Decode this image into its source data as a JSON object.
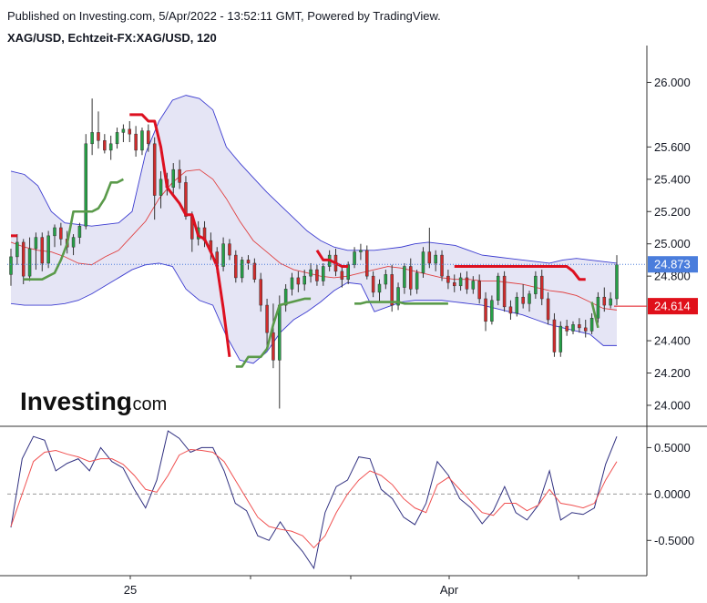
{
  "header": {
    "published": "Published on Investing.com, 5/Apr/2022 - 13:52:11 GMT, Powered by TradingView.",
    "symbol": "XAG/USD, Echtzeit-FX:XAG/USD, 120"
  },
  "logo": {
    "main": "Investing",
    "suffix": ".com"
  },
  "colors": {
    "up": "#26a047",
    "down": "#d02c2c",
    "bb_fill": "#dcdcf2",
    "bb_line": "#3c3cd0",
    "ma": "#e04040",
    "st_up": "#5a9a4a",
    "st_down": "#dd1020",
    "osc": "#303080",
    "osc_signal": "#f05050",
    "last_price": "#4a7ddc",
    "ma_label": "#e0101a"
  },
  "price_labels": {
    "last": "24.873",
    "ma": "24.614"
  },
  "chart_data": [
    {
      "type": "candlestick",
      "title": "XAG/USD, Echtzeit-FX:XAG/USD, 120",
      "ylim": [
        23.87,
        26.2
      ],
      "y_ticks": [
        "26.000",
        "25.600",
        "25.400",
        "25.200",
        "25.000",
        "24.800",
        "24.400",
        "24.200",
        "24.000"
      ],
      "x_ticks": [
        "25",
        "Apr"
      ],
      "last_price": 24.873,
      "ma_value": 24.614,
      "candles": [
        [
          24.81,
          24.97,
          24.74,
          24.92
        ],
        [
          24.92,
          25.06,
          24.87,
          25.01
        ],
        [
          25.01,
          25.03,
          24.75,
          24.8
        ],
        [
          24.8,
          25.04,
          24.77,
          24.97
        ],
        [
          24.97,
          25.07,
          24.84,
          25.04
        ],
        [
          25.04,
          25.07,
          24.83,
          24.88
        ],
        [
          24.88,
          25.08,
          24.85,
          25.05
        ],
        [
          25.05,
          25.12,
          24.98,
          25.1
        ],
        [
          25.1,
          25.13,
          24.99,
          25.03
        ],
        [
          25.03,
          25.08,
          24.94,
          24.98
        ],
        [
          24.98,
          25.06,
          24.93,
          25.04
        ],
        [
          25.04,
          25.13,
          25.0,
          25.11
        ],
        [
          25.11,
          25.68,
          25.09,
          25.62
        ],
        [
          25.62,
          25.9,
          25.55,
          25.69
        ],
        [
          25.69,
          25.82,
          25.59,
          25.64
        ],
        [
          25.64,
          25.68,
          25.56,
          25.58
        ],
        [
          25.58,
          25.67,
          25.52,
          25.62
        ],
        [
          25.62,
          25.72,
          25.59,
          25.69
        ],
        [
          25.69,
          25.74,
          25.63,
          25.71
        ],
        [
          25.71,
          25.76,
          25.63,
          25.68
        ],
        [
          25.68,
          25.73,
          25.54,
          25.58
        ],
        [
          25.58,
          25.72,
          25.55,
          25.7
        ],
        [
          25.7,
          25.74,
          25.57,
          25.62
        ],
        [
          25.62,
          25.66,
          25.15,
          25.3
        ],
        [
          25.3,
          25.45,
          25.22,
          25.4
        ],
        [
          25.4,
          25.44,
          25.3,
          25.35
        ],
        [
          25.35,
          25.5,
          25.3,
          25.46
        ],
        [
          25.46,
          25.52,
          25.34,
          25.38
        ],
        [
          25.38,
          25.42,
          25.15,
          25.17
        ],
        [
          25.17,
          25.2,
          24.95,
          25.03
        ],
        [
          25.03,
          25.14,
          24.99,
          25.1
        ],
        [
          25.1,
          25.14,
          24.98,
          25.02
        ],
        [
          25.02,
          25.07,
          24.9,
          24.95
        ],
        [
          24.95,
          24.98,
          24.82,
          24.86
        ],
        [
          24.86,
          25.04,
          24.83,
          25.0
        ],
        [
          25.0,
          25.03,
          24.9,
          24.93
        ],
        [
          24.93,
          24.96,
          24.76,
          24.79
        ],
        [
          24.79,
          24.92,
          24.76,
          24.9
        ],
        [
          24.9,
          24.93,
          24.84,
          24.88
        ],
        [
          24.88,
          24.91,
          24.76,
          24.78
        ],
        [
          24.78,
          24.82,
          24.58,
          24.62
        ],
        [
          24.62,
          24.66,
          24.36,
          24.45
        ],
        [
          24.45,
          24.63,
          24.23,
          24.28
        ],
        [
          24.28,
          24.68,
          23.98,
          24.62
        ],
        [
          24.62,
          24.75,
          24.58,
          24.72
        ],
        [
          24.72,
          24.82,
          24.68,
          24.79
        ],
        [
          24.79,
          24.83,
          24.7,
          24.75
        ],
        [
          24.75,
          24.84,
          24.71,
          24.8
        ],
        [
          24.8,
          24.88,
          24.76,
          24.84
        ],
        [
          24.84,
          24.87,
          24.74,
          24.77
        ],
        [
          24.77,
          24.88,
          24.74,
          24.86
        ],
        [
          24.86,
          24.96,
          24.83,
          24.93
        ],
        [
          24.93,
          24.97,
          24.8,
          24.83
        ],
        [
          24.83,
          24.86,
          24.73,
          24.78
        ],
        [
          24.78,
          24.89,
          24.75,
          24.87
        ],
        [
          24.87,
          24.98,
          24.85,
          24.95
        ],
        [
          24.95,
          25.0,
          24.9,
          24.96
        ],
        [
          24.96,
          24.99,
          24.78,
          24.8
        ],
        [
          24.8,
          24.83,
          24.67,
          24.7
        ],
        [
          24.7,
          24.78,
          24.64,
          24.75
        ],
        [
          24.75,
          24.84,
          24.72,
          24.81
        ],
        [
          24.81,
          24.87,
          24.58,
          24.62
        ],
        [
          24.62,
          24.76,
          24.59,
          24.73
        ],
        [
          24.73,
          24.88,
          24.69,
          24.86
        ],
        [
          24.86,
          24.91,
          24.68,
          24.72
        ],
        [
          24.72,
          24.84,
          24.69,
          24.82
        ],
        [
          24.82,
          24.98,
          24.79,
          24.95
        ],
        [
          24.95,
          25.1,
          24.85,
          24.88
        ],
        [
          24.88,
          24.96,
          24.83,
          24.93
        ],
        [
          24.93,
          24.96,
          24.77,
          24.8
        ],
        [
          24.8,
          24.84,
          24.72,
          24.76
        ],
        [
          24.76,
          24.81,
          24.7,
          24.74
        ],
        [
          24.74,
          24.82,
          24.71,
          24.79
        ],
        [
          24.79,
          24.83,
          24.69,
          24.72
        ],
        [
          24.72,
          24.8,
          24.69,
          24.77
        ],
        [
          24.77,
          24.81,
          24.63,
          24.66
        ],
        [
          24.66,
          24.7,
          24.46,
          24.52
        ],
        [
          24.52,
          24.68,
          24.5,
          24.65
        ],
        [
          24.65,
          24.82,
          24.62,
          24.8
        ],
        [
          24.8,
          24.83,
          24.58,
          24.61
        ],
        [
          24.61,
          24.65,
          24.53,
          24.57
        ],
        [
          24.57,
          24.7,
          24.55,
          24.67
        ],
        [
          24.67,
          24.75,
          24.6,
          24.63
        ],
        [
          24.63,
          24.71,
          24.58,
          24.69
        ],
        [
          24.69,
          24.83,
          24.66,
          24.8
        ],
        [
          24.8,
          24.84,
          24.62,
          24.66
        ],
        [
          24.66,
          24.7,
          24.5,
          24.53
        ],
        [
          24.53,
          24.57,
          24.3,
          24.33
        ],
        [
          24.33,
          24.52,
          24.3,
          24.49
        ],
        [
          24.49,
          24.53,
          24.43,
          24.46
        ],
        [
          24.46,
          24.52,
          24.44,
          24.5
        ],
        [
          24.5,
          24.54,
          24.45,
          24.48
        ],
        [
          24.48,
          24.53,
          24.42,
          24.46
        ],
        [
          24.46,
          24.57,
          24.44,
          24.54
        ],
        [
          24.54,
          24.7,
          24.51,
          24.67
        ],
        [
          24.67,
          24.73,
          24.58,
          24.62
        ],
        [
          24.62,
          24.7,
          24.6,
          24.66
        ],
        [
          24.66,
          24.93,
          24.62,
          24.87
        ]
      ],
      "bollinger_upper": [
        25.45,
        25.43,
        25.36,
        25.2,
        25.13,
        25.12,
        25.11,
        25.12,
        25.13,
        25.2,
        25.56,
        25.76,
        25.89,
        25.92,
        25.9,
        25.83,
        25.6,
        25.5,
        25.41,
        25.32,
        25.24,
        25.16,
        25.08,
        25.02,
        24.98,
        24.96,
        24.96,
        24.96,
        24.97,
        24.98,
        25.0,
        25.01,
        25.0,
        24.99,
        24.96,
        24.93,
        24.92,
        24.91,
        24.9,
        24.89,
        24.88,
        24.9,
        24.91,
        24.9,
        24.89,
        24.88
      ],
      "bollinger_lower": [
        24.63,
        24.62,
        24.62,
        24.62,
        24.63,
        24.65,
        24.69,
        24.74,
        24.79,
        24.84,
        24.87,
        24.88,
        24.86,
        24.72,
        24.65,
        24.62,
        24.43,
        24.28,
        24.26,
        24.33,
        24.45,
        24.53,
        24.58,
        24.64,
        24.71,
        24.76,
        24.75,
        24.58,
        24.61,
        24.64,
        24.65,
        24.65,
        24.65,
        24.64,
        24.63,
        24.62,
        24.6,
        24.58,
        24.56,
        24.53,
        24.5,
        24.48,
        24.46,
        24.44,
        24.37,
        24.37
      ],
      "moving_average": [
        25.01,
        24.98,
        24.96,
        24.95,
        24.92,
        24.88,
        24.87,
        24.92,
        24.96,
        25.05,
        25.14,
        25.28,
        25.38,
        25.45,
        25.46,
        25.4,
        25.28,
        25.14,
        25.02,
        24.95,
        24.88,
        24.84,
        24.82,
        24.8,
        24.79,
        24.8,
        24.82,
        24.84,
        24.86,
        24.85,
        24.83,
        24.81,
        24.79,
        24.78,
        24.78,
        24.77,
        24.77,
        24.76,
        24.75,
        24.73,
        24.71,
        24.7,
        24.68,
        24.64,
        24.6,
        24.59
      ],
      "supertrend": [
        {
          "trend": "down",
          "values": [
            25.05,
            25.05
          ]
        },
        {
          "trend": "up",
          "values": [
            24.78,
            24.78,
            24.78,
            24.78,
            24.8,
            24.82,
            24.9,
            25.0,
            25.2,
            25.2,
            25.2,
            25.2,
            25.22,
            25.28,
            25.38,
            25.38,
            25.4
          ]
        },
        {
          "trend": "down",
          "values": [
            25.8,
            25.8,
            25.8,
            25.76,
            25.76,
            25.6,
            25.35,
            25.3,
            25.25,
            25.18,
            25.18,
            25.05,
            25.03,
            24.95,
            24.86,
            24.6,
            24.3
          ]
        },
        {
          "trend": "up",
          "values": [
            24.24,
            24.24,
            24.3,
            24.3,
            24.3,
            24.35,
            24.5,
            24.62,
            24.63,
            24.64,
            24.65,
            24.66,
            24.66
          ]
        },
        {
          "trend": "down",
          "values": [
            24.96,
            24.9,
            24.9,
            24.88,
            24.86,
            24.86
          ]
        },
        {
          "trend": "up",
          "values": [
            24.63,
            24.63,
            24.64,
            24.64,
            24.64,
            24.64,
            24.64,
            24.64,
            24.63,
            24.63,
            24.63,
            24.63,
            24.63,
            24.63,
            24.63,
            24.63
          ]
        },
        {
          "trend": "down",
          "values": [
            24.86,
            24.86,
            24.86,
            24.86,
            24.86,
            24.86,
            24.86,
            24.86,
            24.86,
            24.86,
            24.86,
            24.86,
            24.86,
            24.86,
            24.86,
            24.86,
            24.86,
            24.86,
            24.86,
            24.83,
            24.78,
            24.78
          ]
        },
        {
          "trend": "up",
          "values": [
            24.64,
            24.48
          ]
        }
      ]
    },
    {
      "type": "line",
      "ylim": [
        -0.88,
        0.73
      ],
      "y_ticks": [
        "0.5000",
        "0.0000",
        "-0.5000"
      ],
      "zero_line": "dashed",
      "series": [
        {
          "values": [
            -0.36,
            0.38,
            0.62,
            0.58,
            0.25,
            0.33,
            0.38,
            0.25,
            0.5,
            0.35,
            0.28,
            0.05,
            -0.15,
            0.15,
            0.68,
            0.6,
            0.45,
            0.5,
            0.5,
            0.25,
            -0.1,
            -0.18,
            -0.45,
            -0.5,
            -0.3,
            -0.48,
            -0.62,
            -0.8,
            -0.2,
            0.08,
            0.15,
            0.4,
            0.38,
            0.05,
            -0.05,
            -0.25,
            -0.33,
            -0.1,
            0.35,
            0.2,
            -0.05,
            -0.15,
            -0.32,
            -0.18,
            0.08,
            -0.2,
            -0.28,
            -0.12,
            0.25,
            -0.28,
            -0.2,
            -0.22,
            -0.15,
            0.32,
            0.62
          ]
        },
        {
          "values": [
            -0.35,
            0.0,
            0.35,
            0.45,
            0.47,
            0.43,
            0.4,
            0.35,
            0.38,
            0.38,
            0.32,
            0.2,
            0.05,
            0.02,
            0.2,
            0.42,
            0.48,
            0.47,
            0.45,
            0.35,
            0.15,
            -0.05,
            -0.25,
            -0.35,
            -0.38,
            -0.4,
            -0.45,
            -0.58,
            -0.45,
            -0.2,
            0.0,
            0.15,
            0.25,
            0.2,
            0.1,
            -0.05,
            -0.15,
            -0.2,
            0.1,
            0.18,
            0.05,
            -0.08,
            -0.2,
            -0.23,
            -0.1,
            -0.1,
            -0.18,
            -0.12,
            0.05,
            -0.1,
            -0.12,
            -0.15,
            -0.1,
            0.15,
            0.35
          ]
        }
      ]
    }
  ]
}
